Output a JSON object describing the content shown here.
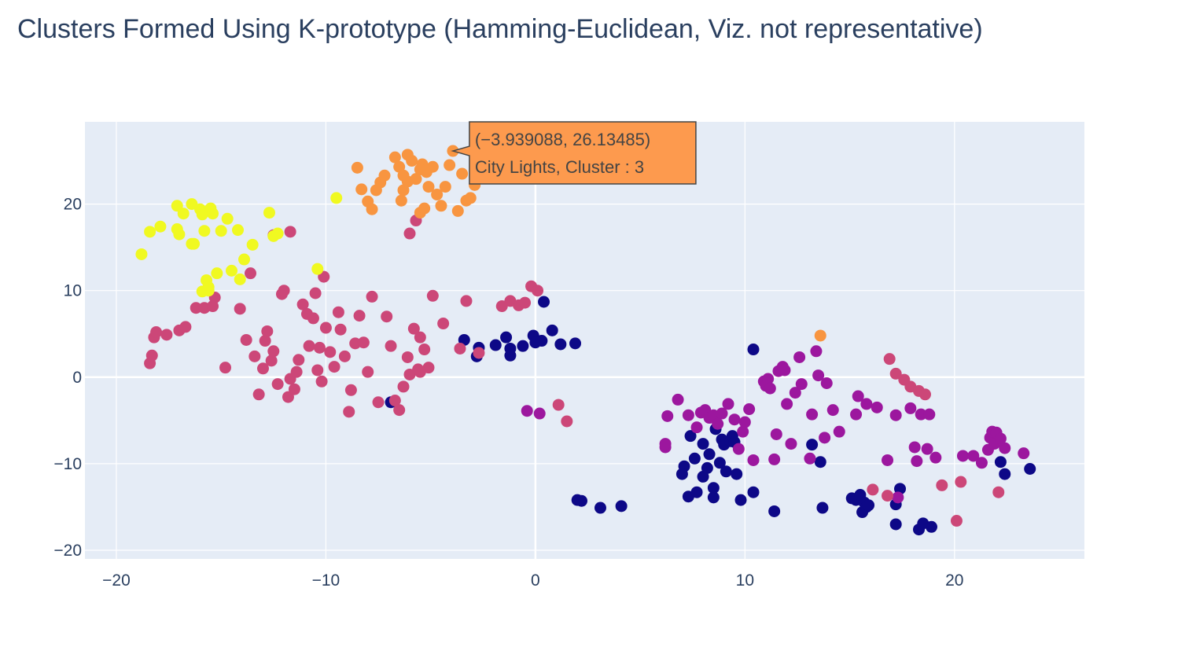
{
  "chart_data": {
    "type": "scatter",
    "title": "Clusters Formed Using K-prototype (Hamming-Euclidean, Viz. not representative)",
    "xlabel": "",
    "ylabel": "",
    "xlim": [
      -21.5,
      26.2
    ],
    "ylim": [
      -21,
      29.5
    ],
    "x_ticks": [
      -20,
      -10,
      0,
      10,
      20
    ],
    "y_ticks": [
      -20,
      -10,
      0,
      10,
      20
    ],
    "x_tick_labels": [
      "−20",
      "−10",
      "0",
      "10",
      "20"
    ],
    "y_tick_labels": [
      "−20",
      "−10",
      "0",
      "10",
      "20"
    ],
    "grid": true,
    "plot_background": "#e5ecf6",
    "series": [
      {
        "color": "#0d0887",
        "x": [
          -6.9,
          -3.4,
          -2.8,
          -2.7,
          -1.9,
          -1.4,
          -1.2,
          -1.2,
          -0.6,
          -0.1,
          0.0,
          0.3,
          0.4,
          0.8,
          1.2,
          1.9,
          2.0,
          2.2,
          3.1,
          4.1,
          7.1,
          7.0,
          7.4,
          7.6,
          7.3,
          7.7,
          8.0,
          8.0,
          8.2,
          8.3,
          8.5,
          8.6,
          8.5,
          8.8,
          8.9,
          9.0,
          9.1,
          9.3,
          9.4,
          9.5,
          9.6,
          9.8,
          10.4,
          10.4,
          11.4,
          13.2,
          13.6,
          13.7,
          15.1,
          15.3,
          15.5,
          15.6,
          15.7,
          15.8,
          15.9,
          17.2,
          17.2,
          17.4,
          18.3,
          18.5,
          18.9,
          22.2,
          22.4,
          23.6
        ],
        "y": [
          -2.9,
          4.3,
          2.4,
          3.4,
          3.7,
          4.6,
          2.5,
          3.3,
          3.6,
          4.8,
          4.0,
          4.2,
          8.7,
          5.4,
          3.8,
          3.9,
          -14.2,
          -14.3,
          -15.1,
          -14.9,
          -10.3,
          -11.2,
          -6.8,
          -9.4,
          -13.8,
          -13.3,
          -7.7,
          -11.5,
          -10.5,
          -8.9,
          -13.9,
          -6.0,
          -12.8,
          -9.9,
          -7.2,
          -7.8,
          -10.9,
          -7.4,
          -6.8,
          -7.5,
          -11.2,
          -14.2,
          3.2,
          -13.3,
          -15.5,
          -7.8,
          -9.8,
          -15.1,
          -14.0,
          -14.2,
          -13.6,
          -15.6,
          -14.5,
          -15.0,
          -14.8,
          -14.7,
          -17.0,
          -12.9,
          -17.6,
          -16.9,
          -17.3,
          -9.8,
          -11.2,
          -10.6
        ]
      },
      {
        "color": "#9c179e",
        "x": [
          -0.4,
          0.2,
          6.2,
          6.2,
          6.3,
          6.8,
          7.3,
          7.7,
          7.9,
          8.1,
          8.3,
          8.5,
          8.7,
          8.9,
          9.2,
          9.5,
          9.7,
          9.9,
          10.0,
          10.2,
          10.4,
          10.9,
          11.0,
          11.1,
          11.2,
          11.4,
          11.5,
          11.6,
          11.8,
          11.9,
          12.0,
          12.2,
          12.4,
          12.6,
          12.7,
          13.1,
          13.2,
          13.4,
          13.5,
          13.8,
          13.9,
          14.2,
          14.5,
          15.3,
          15.4,
          15.8,
          16.3,
          16.8,
          17.2,
          17.3,
          17.9,
          18.1,
          18.2,
          18.4,
          18.7,
          18.8,
          19.1,
          20.4,
          20.9,
          21.3,
          21.6,
          21.7,
          21.8,
          21.9,
          22.0,
          22.2,
          22.4,
          23.3
        ],
        "y": [
          -3.9,
          -4.2,
          -8.1,
          -7.7,
          -4.5,
          -2.6,
          -4.4,
          -5.8,
          -4.1,
          -3.8,
          -4.7,
          -4.4,
          -5.4,
          -4.2,
          -3.1,
          -4.9,
          -8.3,
          -6.3,
          -5.2,
          -3.7,
          -9.6,
          -0.5,
          -1.0,
          -0.2,
          -1.3,
          -9.5,
          -6.6,
          0.7,
          1.2,
          0.8,
          -3.1,
          -7.7,
          -1.8,
          2.3,
          -0.8,
          -9.4,
          -4.3,
          3.0,
          0.2,
          -7.0,
          -0.7,
          -3.8,
          -6.3,
          -4.3,
          -2.2,
          -3.1,
          -3.5,
          -9.6,
          -4.4,
          -13.9,
          -3.6,
          -8.1,
          -9.7,
          -4.3,
          -8.3,
          -4.3,
          -9.3,
          -9.1,
          -9.1,
          -9.9,
          -8.4,
          -7.0,
          -6.3,
          -7.7,
          -6.4,
          -7.1,
          -8.2,
          -8.8
        ]
      },
      {
        "color": "#cc4778",
        "x": [
          -18.4,
          -18.3,
          -18.2,
          -18.1,
          -17.6,
          -17.0,
          -16.7,
          -16.2,
          -15.8,
          -15.4,
          -15.3,
          -14.8,
          -14.1,
          -13.8,
          -13.6,
          -13.4,
          -13.2,
          -13.0,
          -12.9,
          -12.8,
          -12.6,
          -12.5,
          -12.3,
          -12.1,
          -12.0,
          -11.8,
          -11.7,
          -11.5,
          -11.4,
          -11.3,
          -11.1,
          -10.9,
          -10.8,
          -10.6,
          -10.5,
          -10.4,
          -10.3,
          -10.2,
          -10.1,
          -10.0,
          -9.8,
          -9.6,
          -9.4,
          -9.3,
          -9.1,
          -8.9,
          -8.8,
          -8.6,
          -8.4,
          -8.2,
          -8.0,
          -7.8,
          -7.5,
          -7.1,
          -6.9,
          -6.7,
          -6.5,
          -6.3,
          -6.1,
          -6.0,
          -5.8,
          -5.6,
          -5.5,
          -5.3,
          -5.1,
          -4.9,
          -4.4,
          -3.6,
          -3.3,
          -2.7,
          -1.6,
          -1.2,
          -0.8,
          -0.5,
          -0.2,
          0.1,
          1.1,
          1.5,
          -6.0,
          -5.7,
          -5.5,
          -11.7,
          -12.5,
          16.9,
          17.2,
          17.6,
          17.9,
          18.3,
          18.6,
          19.4,
          20.1,
          20.3,
          22.1,
          16.1,
          16.8
        ],
        "y": [
          1.6,
          2.5,
          4.6,
          5.2,
          4.9,
          5.4,
          5.8,
          8.0,
          8.0,
          8.2,
          9.2,
          1.1,
          7.9,
          4.3,
          12.0,
          2.4,
          -2.0,
          1.0,
          4.2,
          5.3,
          1.9,
          3.0,
          -0.8,
          9.6,
          10.0,
          -2.3,
          -0.2,
          -1.4,
          0.6,
          2.0,
          8.4,
          7.3,
          3.6,
          6.8,
          9.7,
          0.8,
          3.4,
          -0.5,
          11.6,
          5.7,
          2.9,
          1.2,
          7.5,
          5.5,
          2.4,
          -4.0,
          -1.5,
          3.9,
          7.1,
          4.0,
          0.6,
          9.3,
          -2.9,
          7.0,
          3.6,
          -2.7,
          -3.8,
          -1.1,
          2.3,
          0.3,
          5.6,
          0.9,
          4.6,
          3.2,
          1.1,
          9.4,
          6.2,
          3.3,
          8.8,
          2.8,
          8.2,
          8.8,
          8.3,
          8.6,
          10.5,
          10.0,
          -3.2,
          -5.1,
          16.6,
          18.1,
          0.6,
          16.8,
          16.4,
          2.1,
          0.4,
          -0.3,
          -1.1,
          -1.6,
          -2.0,
          -12.5,
          -16.6,
          -12.1,
          -13.3,
          -13.0,
          -13.7
        ]
      },
      {
        "color": "#f89540",
        "x": [
          -8.5,
          -8.3,
          -8.0,
          -7.8,
          -7.6,
          -7.4,
          -7.2,
          -6.7,
          -6.5,
          -6.4,
          -6.3,
          -6.1,
          -5.9,
          -5.7,
          -5.5,
          -5.4,
          -5.3,
          -5.2,
          -5.1,
          -4.9,
          -4.7,
          -4.5,
          -4.3,
          -4.1,
          -3.939088,
          -3.7,
          -3.5,
          -3.3,
          -3.1,
          -2.9,
          -5.5,
          -6.1,
          -6.3,
          13.6
        ],
        "y": [
          24.2,
          21.7,
          20.3,
          19.4,
          21.6,
          22.5,
          23.3,
          25.4,
          24.3,
          20.4,
          21.6,
          25.7,
          25.0,
          22.9,
          19.0,
          24.6,
          19.5,
          23.7,
          22.0,
          24.3,
          21.1,
          19.8,
          22.0,
          24.5,
          26.13485,
          19.2,
          23.5,
          20.4,
          20.7,
          22.2,
          24.0,
          22.6,
          23.3,
          4.8
        ]
      },
      {
        "color": "#f0f921",
        "x": [
          -18.8,
          -18.4,
          -17.9,
          -17.1,
          -17.1,
          -17.0,
          -16.8,
          -16.4,
          -16.3,
          -16.0,
          -15.9,
          -15.8,
          -15.7,
          -15.6,
          -15.5,
          -15.4,
          -15.2,
          -15.0,
          -14.7,
          -14.5,
          -14.2,
          -14.1,
          -13.9,
          -13.5,
          -12.7,
          -12.5,
          -12.3,
          -9.5,
          -10.4,
          -16.4,
          -15.9,
          -15.6
        ],
        "y": [
          14.2,
          16.8,
          17.4,
          19.8,
          17.1,
          16.5,
          18.9,
          20.0,
          15.4,
          19.4,
          18.8,
          16.9,
          11.2,
          10.4,
          19.5,
          18.9,
          12.0,
          16.9,
          18.3,
          12.3,
          17.0,
          11.3,
          13.6,
          15.3,
          19.0,
          16.3,
          16.6,
          20.7,
          12.5,
          15.4,
          9.9,
          10.0
        ]
      }
    ],
    "hover_tooltip": {
      "line1": "(−3.939088, 26.13485)",
      "line2": "City Lights, Cluster : 3",
      "x": -3.939088,
      "y": 26.13485,
      "color": "#fd9a4e"
    }
  }
}
